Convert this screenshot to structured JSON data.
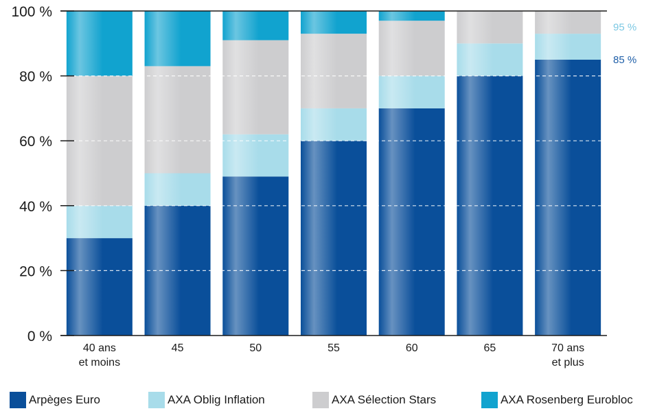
{
  "chart_data": {
    "type": "bar",
    "stacked": true,
    "categories": [
      "40 ans\net moins",
      "45",
      "50",
      "55",
      "60",
      "65",
      "70 ans\net plus"
    ],
    "y_ticks": [
      "0 %",
      "20 %",
      "40 %",
      "60 %",
      "80 %",
      "100 %"
    ],
    "ylim": [
      0,
      100
    ],
    "series": [
      {
        "name": "Arpèges Euro",
        "color": "#0a4f9a",
        "values": [
          30,
          40,
          49,
          60,
          70,
          80,
          85
        ]
      },
      {
        "name": "AXA Oblig Inflation",
        "color": "#a8dcea",
        "values": [
          10,
          10,
          13,
          10,
          10,
          10,
          8
        ]
      },
      {
        "name": "AXA Sélection Stars",
        "color": "#cdcdcf",
        "values": [
          40,
          33,
          29,
          23,
          17,
          10,
          7
        ]
      },
      {
        "name": "AXA Rosenberg Eurobloc",
        "color": "#11a3cf",
        "values": [
          20,
          17,
          9,
          7,
          3,
          0,
          0
        ]
      }
    ],
    "annotations": [
      {
        "text": "95 %",
        "color": "#7cc8e3",
        "y": 95
      },
      {
        "text": "85 %",
        "color": "#1f5fa8",
        "y": 85
      }
    ],
    "grid": "dashed horizontal",
    "legend_position": "bottom"
  }
}
